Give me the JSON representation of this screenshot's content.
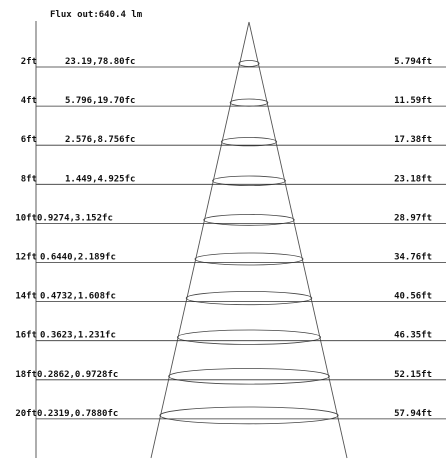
{
  "title": "Flux out:640.4 lm",
  "rows": [
    {
      "distance": "2ft",
      "illuminance": "23.19,78.80fc",
      "beam_diameter": "5.794ft"
    },
    {
      "distance": "4ft",
      "illuminance": "5.796,19.70fc",
      "beam_diameter": "11.59ft"
    },
    {
      "distance": "6ft",
      "illuminance": "2.576,8.756fc",
      "beam_diameter": "17.38ft"
    },
    {
      "distance": "8ft",
      "illuminance": "1.449,4.925fc",
      "beam_diameter": "23.18ft"
    },
    {
      "distance": "10ft",
      "illuminance": "0.9274,3.152fc",
      "beam_diameter": "28.97ft"
    },
    {
      "distance": "12ft",
      "illuminance": "0.6440,2.189fc",
      "beam_diameter": "34.76ft"
    },
    {
      "distance": "14ft",
      "illuminance": "0.4732,1.608fc",
      "beam_diameter": "40.56ft"
    },
    {
      "distance": "16ft",
      "illuminance": "0.3623,1.231fc",
      "beam_diameter": "46.35ft"
    },
    {
      "distance": "18ft",
      "illuminance": "0.2862,0.9728fc",
      "beam_diameter": "52.15ft"
    },
    {
      "distance": "20ft",
      "illuminance": "0.2319,0.7880fc",
      "beam_diameter": "57.94ft"
    }
  ]
}
